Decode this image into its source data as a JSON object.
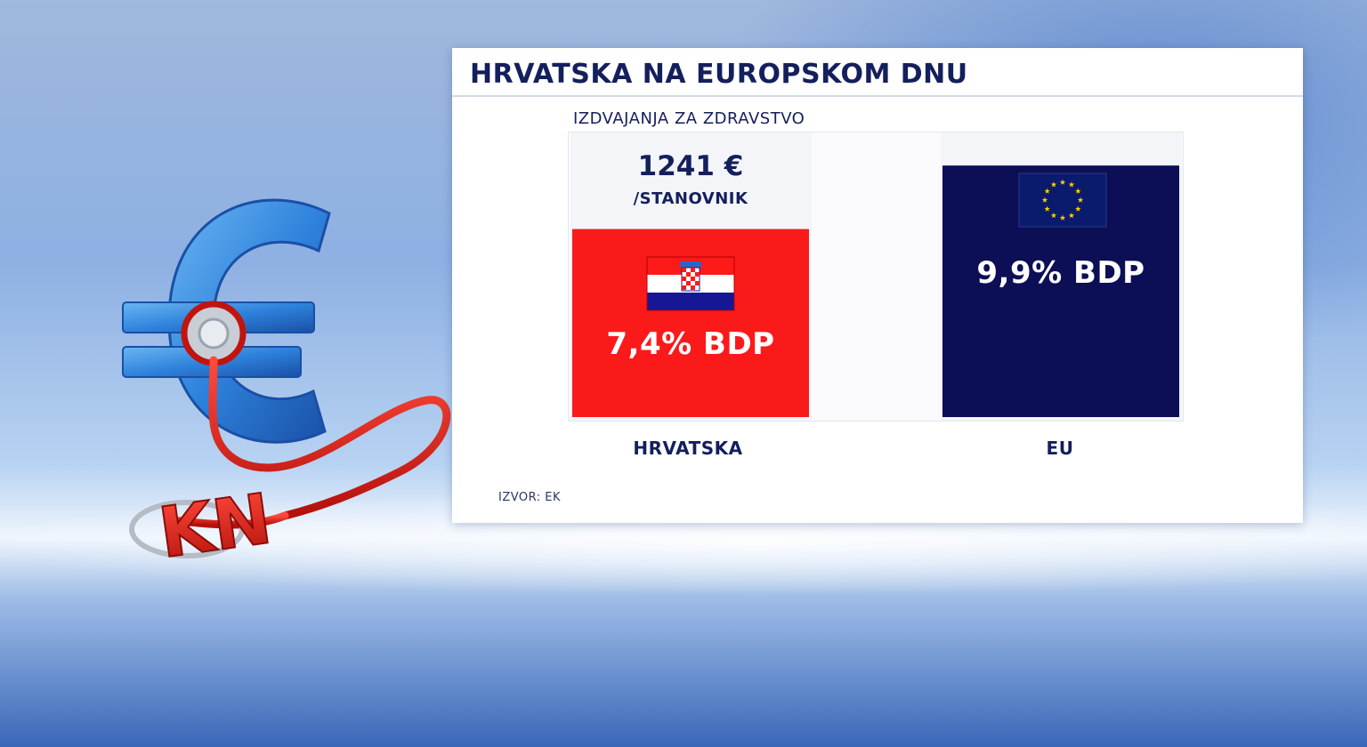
{
  "title": "HRVATSKA NA EUROPSKOM DNU",
  "subtitle": "IZDVAJANJA ZA ZDRAVSTVO",
  "per_capita": {
    "value": "1241 €",
    "unit": "/STANOVNIK"
  },
  "source": "IZVOR: EK",
  "illustration_text": "KN",
  "colors": {
    "croatia_bar": "#fb1a1a",
    "eu_bar": "#0c0f56",
    "title": "#141f5c"
  },
  "icons": {
    "croatia_flag": "croatia-flag-icon",
    "eu_flag": "eu-flag-icon",
    "illustration": "euro-stethoscope-illustration"
  },
  "chart_data": {
    "type": "bar",
    "title": "HRVATSKA NA EUROPSKOM DNU",
    "subtitle": "IZDVAJANJA ZA ZDRAVSTVO",
    "categories": [
      "HRVATSKA",
      "EU"
    ],
    "values": [
      7.4,
      9.9
    ],
    "value_labels": [
      "7,4% BDP",
      "9,9% BDP"
    ],
    "unit": "% BDP",
    "ylim": [
      0,
      10.5
    ],
    "grid": false,
    "legend": "none"
  }
}
